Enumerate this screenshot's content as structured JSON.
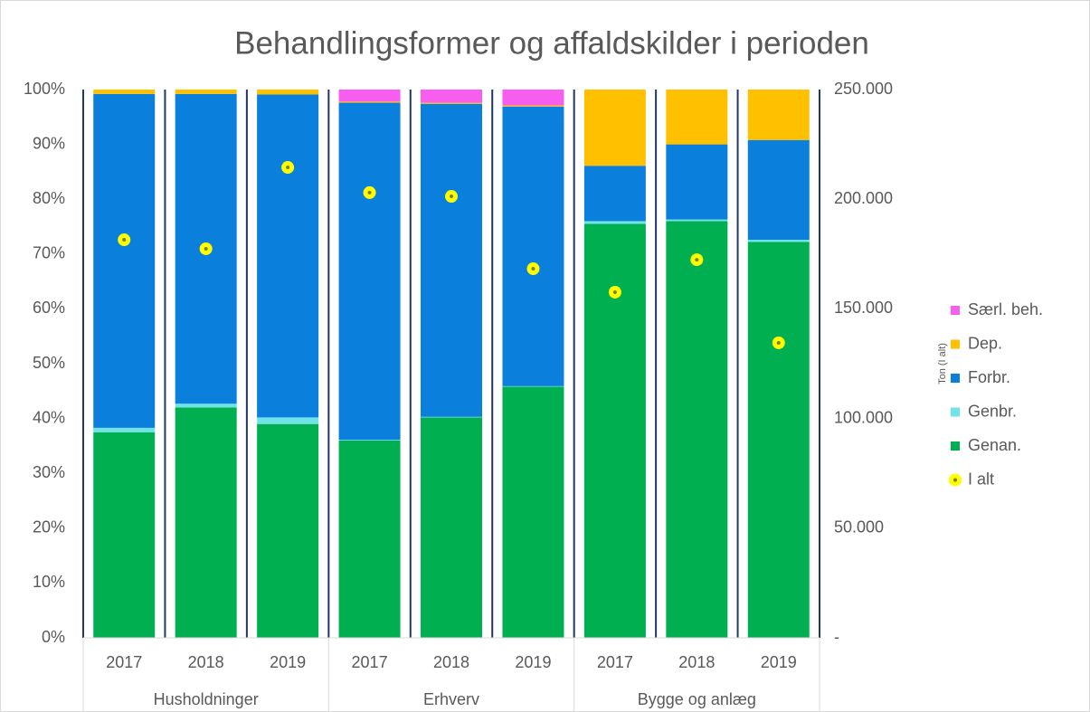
{
  "chart_data": {
    "type": "stacked_bar",
    "title": "Behandlingsformer og affaldskilder i perioden",
    "y2_label": "Ton (I alt)",
    "categories": [
      "2017",
      "2018",
      "2019",
      "2017",
      "2018",
      "2019",
      "2017",
      "2018",
      "2019"
    ],
    "groups": [
      "Husholdninger",
      "Erhverv",
      "Bygge og anlæg"
    ],
    "series": [
      {
        "name": "Genan.",
        "color": "#00b050",
        "values": [
          37.5,
          42,
          39,
          36,
          40.2,
          45.8,
          75.5,
          76,
          72.2
        ]
      },
      {
        "name": "Genbr.",
        "color": "#6fe3e6",
        "values": [
          0.8,
          0.7,
          1.2,
          0.1,
          0.1,
          0.1,
          0.5,
          0.3,
          0.4
        ]
      },
      {
        "name": "Forbr.",
        "color": "#0b7fdc",
        "values": [
          60.9,
          56.5,
          58.9,
          61.5,
          57.1,
          51,
          10.1,
          13.7,
          18.2
        ]
      },
      {
        "name": "Dep.",
        "color": "#ffc000",
        "values": [
          0.8,
          0.8,
          0.9,
          0.2,
          0.2,
          0.2,
          13.9,
          10,
          9.2
        ]
      },
      {
        "name": "Særl. beh.",
        "color": "#f75ef0",
        "values": [
          0,
          0,
          0,
          2.2,
          2.4,
          2.9,
          0,
          0,
          0
        ]
      },
      {
        "name": "I alt",
        "color": "#ffff00",
        "axis": "y2",
        "marker": "circle",
        "values": [
          181500,
          177400,
          214500,
          203000,
          201300,
          168300,
          157600,
          172400,
          134500
        ]
      }
    ],
    "ylim": [
      0,
      100
    ],
    "yticks": [
      {
        "value": 0,
        "label": "0%"
      },
      {
        "value": 10,
        "label": "10%"
      },
      {
        "value": 20,
        "label": "20%"
      },
      {
        "value": 30,
        "label": "30%"
      },
      {
        "value": 40,
        "label": "40%"
      },
      {
        "value": 50,
        "label": "50%"
      },
      {
        "value": 60,
        "label": "60%"
      },
      {
        "value": 70,
        "label": "70%"
      },
      {
        "value": 80,
        "label": "80%"
      },
      {
        "value": 90,
        "label": "90%"
      },
      {
        "value": 100,
        "label": "100%"
      }
    ],
    "y2lim": [
      0,
      250000
    ],
    "y2ticks": [
      {
        "value": 0,
        "label": "-"
      },
      {
        "value": 50000,
        "label": "50.000"
      },
      {
        "value": 100000,
        "label": "100.000"
      },
      {
        "value": 150000,
        "label": "150.000"
      },
      {
        "value": 200000,
        "label": "200.000"
      },
      {
        "value": 250000,
        "label": "250.000"
      }
    ],
    "legend": "right"
  }
}
